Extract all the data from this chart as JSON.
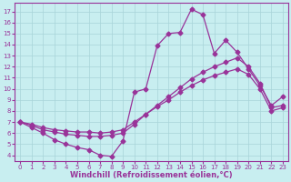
{
  "xlabel": "Windchill (Refroidissement éolien,°C)",
  "xlim_min": -0.5,
  "xlim_max": 23.5,
  "ylim_min": 3.5,
  "ylim_max": 17.8,
  "xticks": [
    0,
    1,
    2,
    3,
    4,
    5,
    6,
    7,
    8,
    9,
    10,
    11,
    12,
    13,
    14,
    15,
    16,
    17,
    18,
    19,
    20,
    21,
    22,
    23
  ],
  "yticks": [
    4,
    5,
    6,
    7,
    8,
    9,
    10,
    11,
    12,
    13,
    14,
    15,
    16,
    17
  ],
  "background_color": "#c8eef0",
  "grid_color": "#a8d4d8",
  "line_color": "#993399",
  "line1_x": [
    0,
    1,
    2,
    3,
    4,
    5,
    6,
    7,
    8,
    9,
    10,
    11,
    12,
    13,
    14,
    15,
    16,
    17,
    18,
    19,
    20,
    21,
    22,
    23
  ],
  "line1_y": [
    7.0,
    6.5,
    6.0,
    5.4,
    5.0,
    4.7,
    4.5,
    4.0,
    3.9,
    5.3,
    9.7,
    10.0,
    13.9,
    15.0,
    15.1,
    17.2,
    16.7,
    13.2,
    14.4,
    13.3,
    11.8,
    10.3,
    8.5,
    9.3
  ],
  "line2_x": [
    0,
    1,
    2,
    3,
    4,
    5,
    6,
    7,
    8,
    9,
    10,
    11,
    12,
    13,
    14,
    15,
    16,
    17,
    18,
    19,
    20,
    21,
    22,
    23
  ],
  "line2_y": [
    7.0,
    6.7,
    6.3,
    6.1,
    5.9,
    5.8,
    5.7,
    5.7,
    5.8,
    6.0,
    6.8,
    7.7,
    8.5,
    9.3,
    10.1,
    10.9,
    11.5,
    12.0,
    12.4,
    12.8,
    12.0,
    10.5,
    8.3,
    8.5
  ],
  "line3_x": [
    0,
    1,
    2,
    3,
    4,
    5,
    6,
    7,
    8,
    9,
    10,
    11,
    12,
    13,
    14,
    15,
    16,
    17,
    18,
    19,
    20,
    21,
    22,
    23
  ],
  "line3_y": [
    7.0,
    6.8,
    6.5,
    6.3,
    6.2,
    6.1,
    6.1,
    6.0,
    6.1,
    6.3,
    7.0,
    7.7,
    8.4,
    9.0,
    9.7,
    10.3,
    10.8,
    11.2,
    11.5,
    11.8,
    11.3,
    10.0,
    8.0,
    8.3
  ],
  "markersize": 2.5,
  "linewidth": 0.9,
  "tick_fontsize": 5.0,
  "xlabel_fontsize": 6.0
}
